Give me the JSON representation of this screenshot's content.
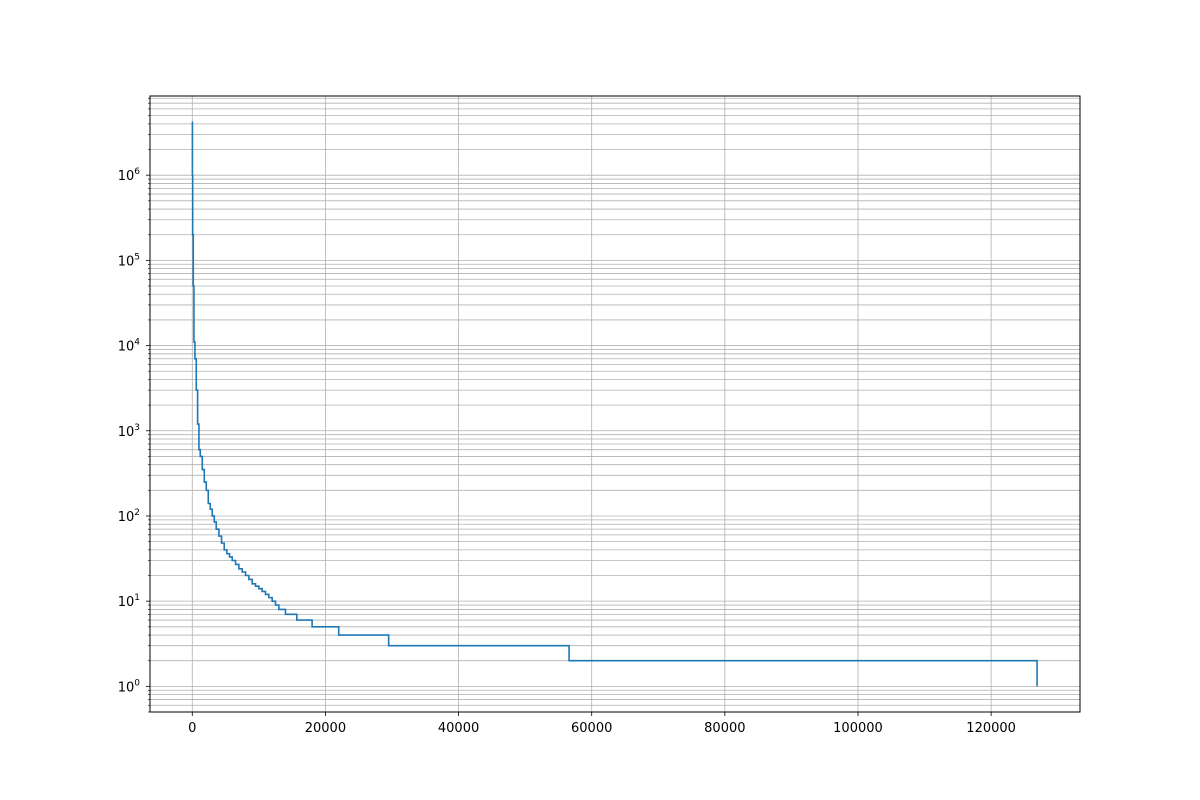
{
  "chart_data": {
    "type": "line",
    "title": "",
    "xlabel": "",
    "ylabel": "",
    "xscale": "linear",
    "yscale": "log",
    "xlim": [
      -6350,
      133350
    ],
    "ylim": [
      0.5,
      8500000
    ],
    "grid": "major and minor",
    "legend": "none",
    "x_ticks": [
      {
        "value": 0,
        "label": "0"
      },
      {
        "value": 20000,
        "label": "20000"
      },
      {
        "value": 40000,
        "label": "40000"
      },
      {
        "value": 60000,
        "label": "60000"
      },
      {
        "value": 80000,
        "label": "80000"
      },
      {
        "value": 100000,
        "label": "100000"
      },
      {
        "value": 120000,
        "label": "120000"
      }
    ],
    "y_ticks": [
      {
        "value": 1,
        "base": "10",
        "exp": "0"
      },
      {
        "value": 10,
        "base": "10",
        "exp": "1"
      },
      {
        "value": 100,
        "base": "10",
        "exp": "2"
      },
      {
        "value": 1000,
        "base": "10",
        "exp": "3"
      },
      {
        "value": 10000,
        "base": "10",
        "exp": "4"
      },
      {
        "value": 100000,
        "base": "10",
        "exp": "5"
      },
      {
        "value": 1000000,
        "base": "10",
        "exp": "6"
      }
    ],
    "series": [
      {
        "color": "#1f77b4",
        "step": true,
        "x": [
          0,
          20,
          60,
          150,
          250,
          400,
          600,
          800,
          1000,
          1200,
          1500,
          1800,
          2100,
          2400,
          2700,
          3000,
          3300,
          3600,
          4000,
          4400,
          4800,
          5200,
          5600,
          6000,
          6500,
          7000,
          7500,
          8000,
          8500,
          9000,
          9500,
          10000,
          10500,
          11000,
          11500,
          12000,
          12500,
          13000,
          14000,
          15700,
          18000,
          22000,
          29500,
          56600,
          126900
        ],
        "y": [
          4200000,
          1000000,
          200000,
          50000,
          11000,
          7000,
          3000,
          1200,
          600,
          500,
          350,
          250,
          200,
          140,
          120,
          100,
          85,
          70,
          58,
          48,
          40,
          36,
          33,
          30,
          27,
          24,
          22,
          20,
          18,
          16,
          15,
          14,
          13,
          12,
          11,
          10,
          9,
          8,
          7,
          6,
          5,
          4,
          3,
          2,
          1
        ]
      }
    ]
  }
}
